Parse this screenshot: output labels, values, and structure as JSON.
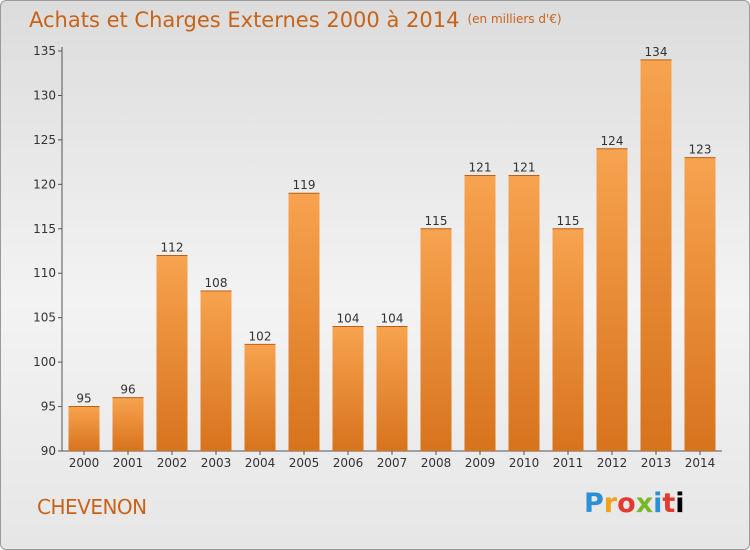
{
  "header": {
    "title": "Achats et Charges Externes 2000 à 2014",
    "subtitle": "(en milliers d'€)"
  },
  "footer": {
    "commune": "CHEVENON",
    "logo_text": "Proxiti"
  },
  "colors": {
    "bar_top": "#f7a34f",
    "bar_bottom": "#d8731d",
    "accent": "#c8631a"
  },
  "chart_data": {
    "type": "bar",
    "categories": [
      "2000",
      "2001",
      "2002",
      "2003",
      "2004",
      "2005",
      "2006",
      "2007",
      "2008",
      "2009",
      "2010",
      "2011",
      "2012",
      "2013",
      "2014"
    ],
    "values": [
      95,
      96,
      112,
      108,
      102,
      119,
      104,
      104,
      115,
      121,
      121,
      115,
      124,
      134,
      123
    ],
    "ylim": [
      90,
      135
    ],
    "yticks": [
      90,
      95,
      100,
      105,
      110,
      115,
      120,
      125,
      130,
      135
    ],
    "grid": false,
    "legend": "none"
  }
}
